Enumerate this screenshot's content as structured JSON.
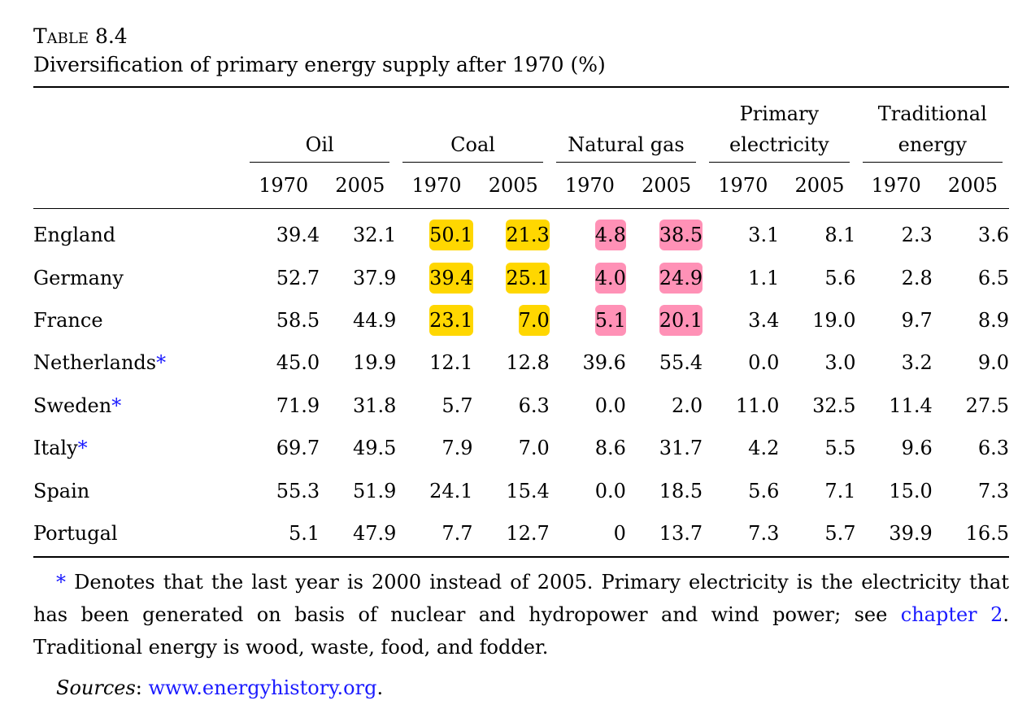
{
  "table": {
    "label": "Table 8.4",
    "title": "Diversification of primary energy supply after 1970 (%)",
    "groups": [
      {
        "label": "Oil"
      },
      {
        "label": "Coal"
      },
      {
        "label": "Natural gas"
      },
      {
        "label_line1": "Primary",
        "label_line2": "electricity"
      },
      {
        "label_line1": "Traditional",
        "label_line2": "energy"
      }
    ],
    "years": [
      "1970",
      "2005",
      "1970",
      "2005",
      "1970",
      "2005",
      "1970",
      "2005",
      "1970",
      "2005"
    ],
    "highlight_colors": {
      "coal": "#ffd700",
      "natural_gas": "#ff91b6",
      "link": "#1a1aff"
    },
    "rows": [
      {
        "country": "England",
        "star": "",
        "values": [
          "39.4",
          "32.1",
          "50.1",
          "21.3",
          "4.8",
          "38.5",
          "3.1",
          "8.1",
          "2.3",
          "3.6"
        ]
      },
      {
        "country": "Germany",
        "star": "",
        "values": [
          "52.7",
          "37.9",
          "39.4",
          "25.1",
          "4.0",
          "24.9",
          "1.1",
          "5.6",
          "2.8",
          "6.5"
        ]
      },
      {
        "country": "France",
        "star": "",
        "values": [
          "58.5",
          "44.9",
          "23.1",
          "7.0",
          "5.1",
          "20.1",
          "3.4",
          "19.0",
          "9.7",
          "8.9"
        ]
      },
      {
        "country": "Netherlands",
        "star": "*",
        "values": [
          "45.0",
          "19.9",
          "12.1",
          "12.8",
          "39.6",
          "55.4",
          "0.0",
          "3.0",
          "3.2",
          "9.0"
        ]
      },
      {
        "country": "Sweden",
        "star": "*",
        "values": [
          "71.9",
          "31.8",
          "5.7",
          "6.3",
          "0.0",
          "2.0",
          "11.0",
          "32.5",
          "11.4",
          "27.5"
        ]
      },
      {
        "country": "Italy",
        "star": "*",
        "values": [
          "69.7",
          "49.5",
          "7.9",
          "7.0",
          "8.6",
          "31.7",
          "4.2",
          "5.5",
          "9.6",
          "6.3"
        ]
      },
      {
        "country": "Spain",
        "star": "",
        "values": [
          "55.3",
          "51.9",
          "24.1",
          "15.4",
          "0.0",
          "18.5",
          "5.6",
          "7.1",
          "15.0",
          "7.3"
        ]
      },
      {
        "country": "Portugal",
        "star": "",
        "values": [
          "5.1",
          "47.9",
          "7.7",
          "12.7",
          "0",
          "13.7",
          "7.3",
          "5.7",
          "39.9",
          "16.5"
        ]
      }
    ]
  },
  "footnote": {
    "star": "*",
    "text_before_link": " Denotes that the last year is 2000 instead of 2005. Primary electricity is the electricity that has been generated on basis of nuclear and hydropower and wind power; see ",
    "link_text": "chapter 2",
    "text_after_link": ". Traditional energy is wood, waste, food, and fodder."
  },
  "sources": {
    "label": "Sources",
    "separator": ": ",
    "link_text": "www.energyhistory.org",
    "end": "."
  }
}
